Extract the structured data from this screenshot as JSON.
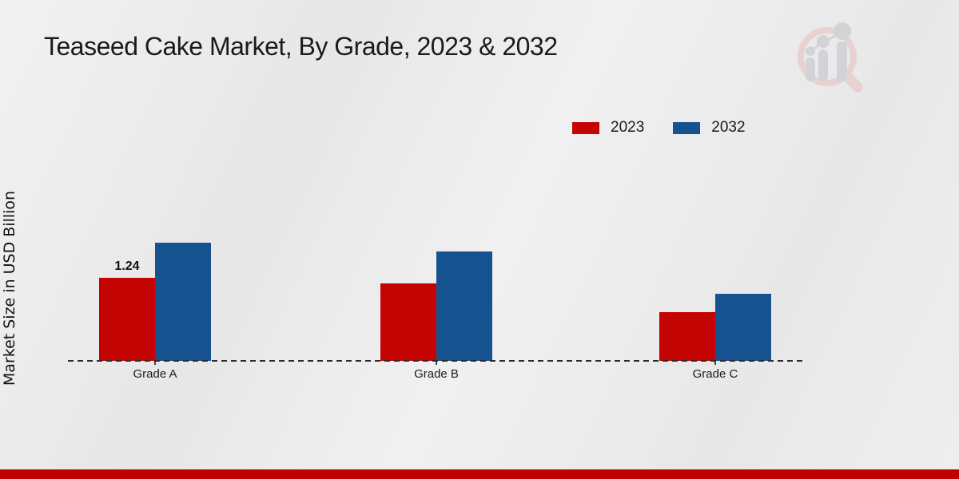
{
  "page": {
    "title": "Teaseed Cake Market, By Grade, 2023 & 2032"
  },
  "y_axis": {
    "label": "Market Size in USD Billion"
  },
  "legend": {
    "items": [
      {
        "label": "2023",
        "color": "#c40303"
      },
      {
        "label": "2032",
        "color": "#15528f"
      }
    ]
  },
  "chart_data": {
    "type": "bar",
    "title": "Teaseed Cake Market, By Grade, 2023 & 2032",
    "categories": [
      "Grade A",
      "Grade B",
      "Grade C"
    ],
    "series": [
      {
        "name": "2023",
        "color": "#c40303",
        "values": [
          1.24,
          1.16,
          0.73
        ]
      },
      {
        "name": "2032",
        "color": "#15528f",
        "values": [
          1.76,
          1.63,
          1.0
        ]
      }
    ],
    "xlabel": "",
    "ylabel": "Market Size in USD Billion",
    "ylim": [
      0,
      2
    ],
    "grid": false,
    "legend_position": "top-right",
    "value_labels": [
      {
        "series": "2023",
        "category": "Grade A",
        "text": "1.24"
      }
    ]
  },
  "icons": {
    "watermark": "magnifier-bar-chart-logo"
  },
  "colors": {
    "series_2023": "#c40303",
    "series_2032": "#15528f",
    "footer_stripe": "#bf0000",
    "axis_line": "#2b2b2b",
    "background": "#ececec"
  }
}
